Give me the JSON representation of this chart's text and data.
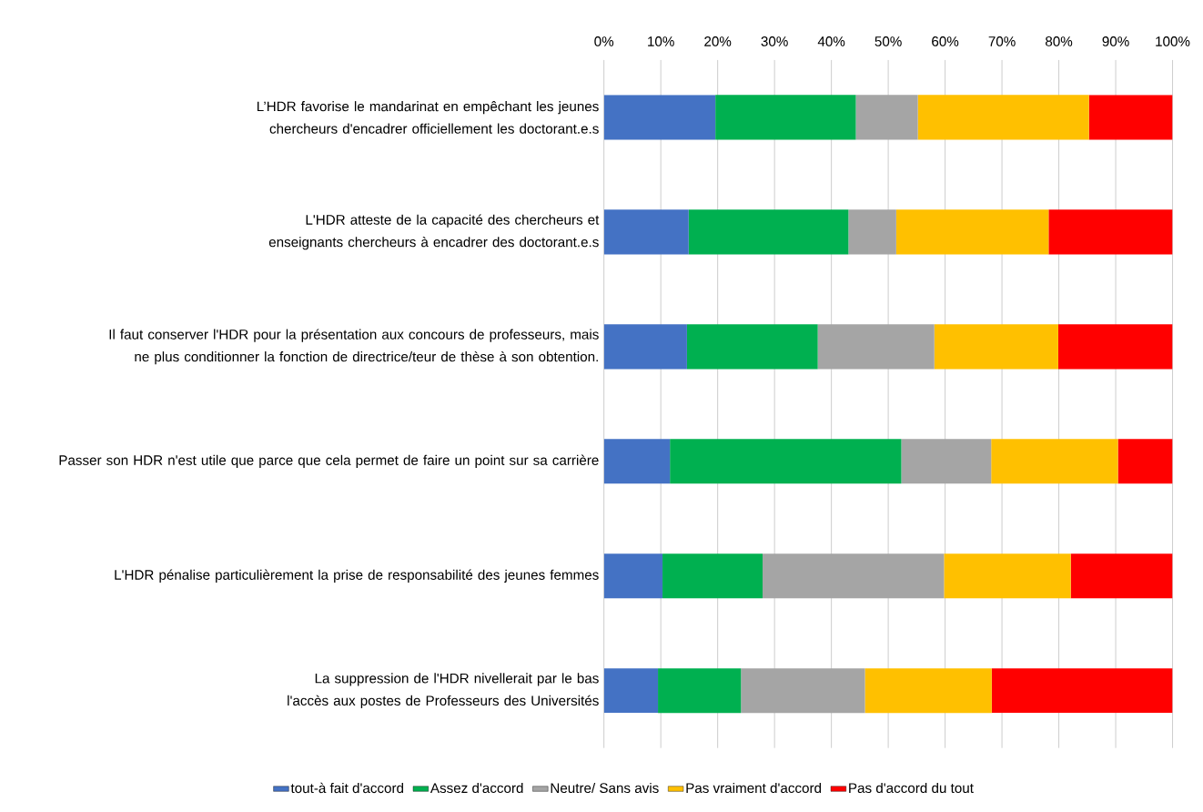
{
  "chart_data": {
    "type": "bar",
    "orientation": "horizontal",
    "stacked": true,
    "categories": [
      "L’HDR favorise le mandarinat en empêchant les jeunes chercheurs d'encadrer officiellement les doctorant.e.s",
      "L'HDR atteste de la capacité des chercheurs et enseignants chercheurs à encadrer des doctorant.e.s",
      "Il faut conserver l'HDR pour la présentation aux concours de professeurs, mais ne plus conditionner la fonction de directrice/teur de thèse à son obtention.",
      "Passer son HDR n'est utile que parce que cela permet de faire un point sur sa carrière",
      "L'HDR pénalise particulièrement la prise de responsabilité des jeunes femmes",
      "La suppression de l'HDR nivellerait par le bas l'accès aux postes de Professeurs des Universités"
    ],
    "series": [
      {
        "name": "tout-à fait d'accord",
        "color": "#4472c4",
        "values": [
          19.6,
          14.9,
          14.6,
          11.6,
          10.3,
          9.5
        ]
      },
      {
        "name": "Assez d'accord",
        "color": "#00b050",
        "values": [
          24.7,
          28.1,
          23.0,
          40.7,
          17.6,
          14.6
        ]
      },
      {
        "name": "Neutre/ Sans avis",
        "color": "#a5a5a5",
        "values": [
          10.9,
          8.4,
          20.5,
          15.8,
          31.9,
          21.8
        ]
      },
      {
        "name": "Pas vraiment d'accord",
        "color": "#ffc000",
        "values": [
          30.1,
          26.8,
          21.8,
          22.3,
          22.3,
          22.3
        ]
      },
      {
        "name": "Pas d'accord du tout",
        "color": "#ff0000",
        "values": [
          14.7,
          21.8,
          20.1,
          9.6,
          17.9,
          31.8
        ]
      }
    ],
    "xlim": [
      0,
      100
    ],
    "xticks": [
      {
        "value": 0,
        "label": "0%"
      },
      {
        "value": 10,
        "label": "10%"
      },
      {
        "value": 20,
        "label": "20%"
      },
      {
        "value": 30,
        "label": "30%"
      },
      {
        "value": 40,
        "label": "40%"
      },
      {
        "value": 50,
        "label": "50%"
      },
      {
        "value": 60,
        "label": "60%"
      },
      {
        "value": 70,
        "label": "70%"
      },
      {
        "value": 80,
        "label": "80%"
      },
      {
        "value": 90,
        "label": "90%"
      },
      {
        "value": 100,
        "label": "100%"
      }
    ],
    "grid": "x",
    "legend": "bottom"
  }
}
